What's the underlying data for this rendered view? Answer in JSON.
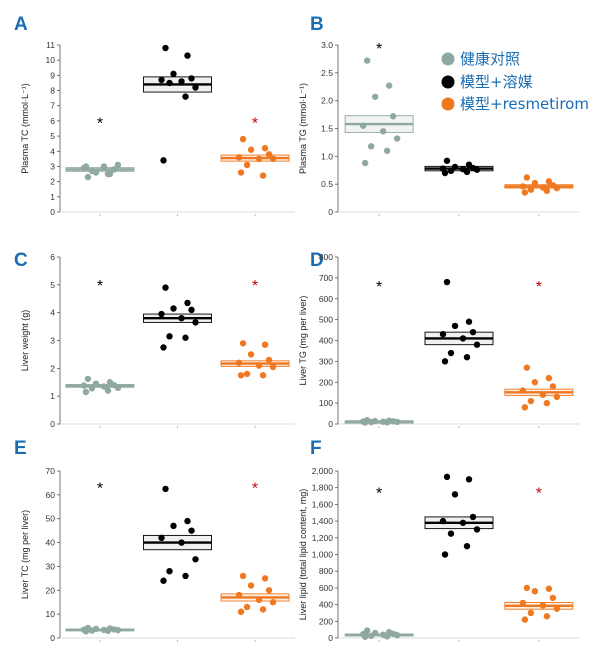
{
  "legend": [
    {
      "label": "健康对照",
      "color": "#8fa8a0"
    },
    {
      "label": "模型+溶媒",
      "color": "#000000"
    },
    {
      "label": "模型+resmetirom",
      "color": "#f07820"
    }
  ],
  "colors": {
    "control": "#8fa8a0",
    "vehicle": "#000000",
    "resmetirom": "#f07820",
    "panel_letter": "#1a6db5",
    "legend_text": "#1a6db5",
    "sig_black": "#000000",
    "sig_red": "#cc0000"
  },
  "chart_data": [
    {
      "panel": "A",
      "type": "scatter",
      "ylabel": "Plasma TC (mmol·L⁻¹)",
      "ylim": [
        0,
        11
      ],
      "yticks": [
        "0",
        "1",
        "2",
        "3",
        "4",
        "5",
        "6",
        "7",
        "8",
        "9",
        "10",
        "11"
      ],
      "series": [
        {
          "name": "健康对照",
          "mean": 2.8,
          "sem": 0.12,
          "values": [
            2.3,
            2.5,
            2.6,
            2.8,
            2.9,
            3.0,
            3.1,
            2.7,
            2.5,
            3.0
          ]
        },
        {
          "name": "模型+溶媒",
          "mean": 8.4,
          "sem": 0.5,
          "values": [
            10.8,
            10.3,
            9.1,
            8.8,
            8.7,
            8.6,
            8.2,
            8.5,
            7.6,
            3.4
          ]
        },
        {
          "name": "模型+resmetirom",
          "mean": 3.55,
          "sem": 0.2,
          "values": [
            4.8,
            4.2,
            4.1,
            3.8,
            3.6,
            3.5,
            3.5,
            3.1,
            2.4,
            2.6
          ]
        }
      ],
      "markers": [
        {
          "group": 0,
          "value": 5.9,
          "text": "*",
          "color": "black"
        },
        {
          "group": 2,
          "value": 5.9,
          "text": "*",
          "color": "red"
        }
      ]
    },
    {
      "panel": "B",
      "type": "scatter",
      "ylabel": "Plasma TG (mmol·L⁻¹)",
      "ylim": [
        0,
        3.0
      ],
      "yticks": [
        "0",
        "0.5",
        "1.0",
        "1.5",
        "2.0",
        "2.5",
        "3.0"
      ],
      "series": [
        {
          "name": "健康对照",
          "mean": 1.58,
          "sem": 0.15,
          "values": [
            2.72,
            2.27,
            2.07,
            1.72,
            1.55,
            1.45,
            1.32,
            1.18,
            1.1,
            0.88
          ]
        },
        {
          "name": "模型+溶媒",
          "mean": 0.78,
          "sem": 0.04,
          "values": [
            0.92,
            0.85,
            0.81,
            0.79,
            0.78,
            0.77,
            0.76,
            0.74,
            0.72,
            0.7
          ]
        },
        {
          "name": "模型+resmetirom",
          "mean": 0.46,
          "sem": 0.03,
          "values": [
            0.62,
            0.55,
            0.52,
            0.48,
            0.46,
            0.44,
            0.43,
            0.4,
            0.38,
            0.35
          ]
        }
      ],
      "markers": [
        {
          "group": 0,
          "value": 2.95,
          "text": "*",
          "color": "black"
        }
      ]
    },
    {
      "panel": "C",
      "type": "scatter",
      "ylabel": "Liver weight (g)",
      "ylim": [
        0,
        6
      ],
      "yticks": [
        "0",
        "1",
        "2",
        "3",
        "4",
        "5",
        "6"
      ],
      "series": [
        {
          "name": "健康对照",
          "mean": 1.37,
          "sem": 0.05,
          "values": [
            1.62,
            1.5,
            1.45,
            1.4,
            1.38,
            1.35,
            1.3,
            1.28,
            1.2,
            1.15
          ]
        },
        {
          "name": "模型+溶媒",
          "mean": 3.8,
          "sem": 0.15,
          "values": [
            4.9,
            4.35,
            4.15,
            4.1,
            3.95,
            3.8,
            3.65,
            3.15,
            3.1,
            2.75
          ]
        },
        {
          "name": "模型+resmetirom",
          "mean": 2.17,
          "sem": 0.1,
          "values": [
            2.9,
            2.85,
            2.5,
            2.3,
            2.2,
            2.1,
            2.05,
            1.8,
            1.75,
            1.75
          ]
        }
      ],
      "markers": [
        {
          "group": 0,
          "value": 5.0,
          "text": "*",
          "color": "black"
        },
        {
          "group": 2,
          "value": 5.0,
          "text": "*",
          "color": "red"
        }
      ]
    },
    {
      "panel": "D",
      "type": "scatter",
      "ylabel": "Liver TG (mg per liver)",
      "ylim": [
        0,
        800
      ],
      "yticks": [
        "0",
        "100",
        "200",
        "300",
        "400",
        "500",
        "600",
        "700",
        "800"
      ],
      "series": [
        {
          "name": "健康对照",
          "mean": 12,
          "sem": 2,
          "values": [
            18,
            16,
            14,
            13,
            12,
            11,
            10,
            9,
            8,
            7
          ]
        },
        {
          "name": "模型+溶媒",
          "mean": 410,
          "sem": 30,
          "values": [
            680,
            490,
            470,
            440,
            430,
            410,
            380,
            340,
            320,
            300
          ]
        },
        {
          "name": "模型+resmetirom",
          "mean": 152,
          "sem": 15,
          "values": [
            270,
            220,
            200,
            180,
            160,
            140,
            130,
            110,
            100,
            80
          ]
        }
      ],
      "markers": [
        {
          "group": 0,
          "value": 660,
          "text": "*",
          "color": "black"
        },
        {
          "group": 2,
          "value": 660,
          "text": "*",
          "color": "red"
        }
      ]
    },
    {
      "panel": "E",
      "type": "scatter",
      "ylabel": "Liver TC (mg per liver)",
      "ylim": [
        0,
        70
      ],
      "yticks": [
        "0",
        "10",
        "20",
        "30",
        "40",
        "50",
        "60",
        "70"
      ],
      "series": [
        {
          "name": "健康对照",
          "mean": 3.5,
          "sem": 0.3,
          "values": [
            4.2,
            4.0,
            3.8,
            3.6,
            3.5,
            3.4,
            3.3,
            3.1,
            3.0,
            2.8
          ]
        },
        {
          "name": "模型+溶媒",
          "mean": 40,
          "sem": 3,
          "values": [
            62.5,
            49,
            47,
            45,
            42,
            40,
            33,
            28,
            26,
            24
          ]
        },
        {
          "name": "模型+resmetirom",
          "mean": 17,
          "sem": 1.5,
          "values": [
            26,
            25,
            22,
            20,
            18,
            16,
            15,
            13,
            12,
            11
          ]
        }
      ],
      "markers": [
        {
          "group": 0,
          "value": 63,
          "text": "*",
          "color": "black"
        },
        {
          "group": 2,
          "value": 63,
          "text": "*",
          "color": "red"
        }
      ]
    },
    {
      "panel": "F",
      "type": "scatter",
      "ylabel": "Liver lipid (total lipid content, mg)",
      "ylim": [
        0,
        2000
      ],
      "yticks": [
        "0",
        "200",
        "400",
        "600",
        "800",
        "1,000",
        "1,200",
        "1,400",
        "1,600",
        "1,800",
        "2,000"
      ],
      "series": [
        {
          "name": "健康对照",
          "mean": 40,
          "sem": 8,
          "values": [
            90,
            70,
            60,
            50,
            45,
            40,
            35,
            25,
            20,
            15
          ]
        },
        {
          "name": "模型+溶媒",
          "mean": 1380,
          "sem": 70,
          "values": [
            1930,
            1900,
            1720,
            1450,
            1400,
            1380,
            1300,
            1250,
            1100,
            1000
          ]
        },
        {
          "name": "模型+resmetirom",
          "mean": 385,
          "sem": 40,
          "values": [
            600,
            590,
            560,
            480,
            420,
            390,
            350,
            300,
            260,
            220
          ]
        }
      ],
      "markers": [
        {
          "group": 0,
          "value": 1740,
          "text": "*",
          "color": "black"
        },
        {
          "group": 2,
          "value": 1740,
          "text": "*",
          "color": "red"
        }
      ]
    }
  ]
}
